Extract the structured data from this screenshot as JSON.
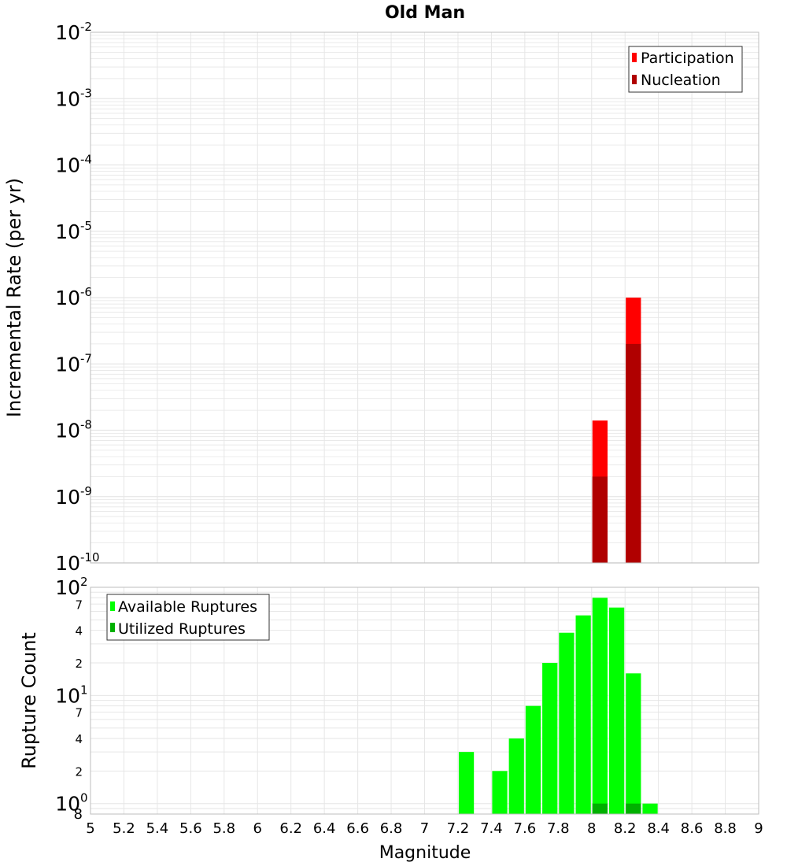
{
  "title": "Old Man",
  "colors": {
    "participation": "#ff0000",
    "nucleation": "#b00000",
    "available": "#00ff00",
    "utilized": "#00b000",
    "grid": "#e6e6e6",
    "frame": "#bdbdbd"
  },
  "chart_data": [
    {
      "type": "bar",
      "title": "Old Man",
      "xlabel": "",
      "ylabel": "Incremental Rate (per yr)",
      "xlim": [
        5,
        9
      ],
      "ylim": [
        1e-10,
        0.01
      ],
      "yscale": "log",
      "grid": true,
      "legend_position": "top-right",
      "y_tick_labels": [
        {
          "base": "10",
          "exp": "-2"
        },
        {
          "base": "10",
          "exp": "-3"
        },
        {
          "base": "10",
          "exp": "-4"
        },
        {
          "base": "10",
          "exp": "-5"
        },
        {
          "base": "10",
          "exp": "-6"
        },
        {
          "base": "10",
          "exp": "-7"
        },
        {
          "base": "10",
          "exp": "-8"
        },
        {
          "base": "10",
          "exp": "-9"
        },
        {
          "base": "10",
          "exp": "-10"
        }
      ],
      "legend": [
        "Participation",
        "Nucleation"
      ],
      "series": [
        {
          "name": "Participation",
          "x": [
            8.05,
            8.25
          ],
          "values": [
            1.4e-08,
            1e-06
          ]
        },
        {
          "name": "Nucleation",
          "x": [
            8.05,
            8.25
          ],
          "values": [
            2e-09,
            2e-07
          ]
        }
      ]
    },
    {
      "type": "bar",
      "title": "",
      "xlabel": "Magnitude",
      "ylabel": "Rupture Count",
      "xlim": [
        5,
        9
      ],
      "ylim": [
        0.8,
        100
      ],
      "yscale": "log",
      "grid": true,
      "legend_position": "top-left",
      "x_tick_labels": [
        "5",
        "5.2",
        "5.4",
        "5.6",
        "5.8",
        "6",
        "6.2",
        "6.4",
        "6.6",
        "6.8",
        "7",
        "7.2",
        "7.4",
        "7.6",
        "7.8",
        "8",
        "8.2",
        "8.4",
        "8.6",
        "8.8",
        "9"
      ],
      "y_tick_labels": [
        {
          "base": "10",
          "exp": "2"
        },
        {
          "base": "10",
          "exp": "1"
        },
        {
          "base": "10",
          "exp": "0"
        }
      ],
      "y_minor_labels": [
        {
          "label": "7",
          "value": 70
        },
        {
          "label": "4",
          "value": 40
        },
        {
          "label": "2",
          "value": 20
        },
        {
          "label": "7",
          "value": 7
        },
        {
          "label": "4",
          "value": 4
        },
        {
          "label": "2",
          "value": 2
        },
        {
          "label": "8",
          "value": 0.8
        }
      ],
      "legend": [
        "Available Ruptures",
        "Utilized Ruptures"
      ],
      "series": [
        {
          "name": "Available Ruptures",
          "x": [
            7.25,
            7.45,
            7.55,
            7.65,
            7.75,
            7.85,
            7.95,
            8.05,
            8.15,
            8.25,
            8.35
          ],
          "values": [
            3,
            2,
            4,
            8,
            20,
            38,
            55,
            80,
            65,
            16,
            1
          ]
        },
        {
          "name": "Utilized Ruptures",
          "x": [
            8.05,
            8.25
          ],
          "values": [
            1,
            1
          ]
        }
      ]
    }
  ]
}
